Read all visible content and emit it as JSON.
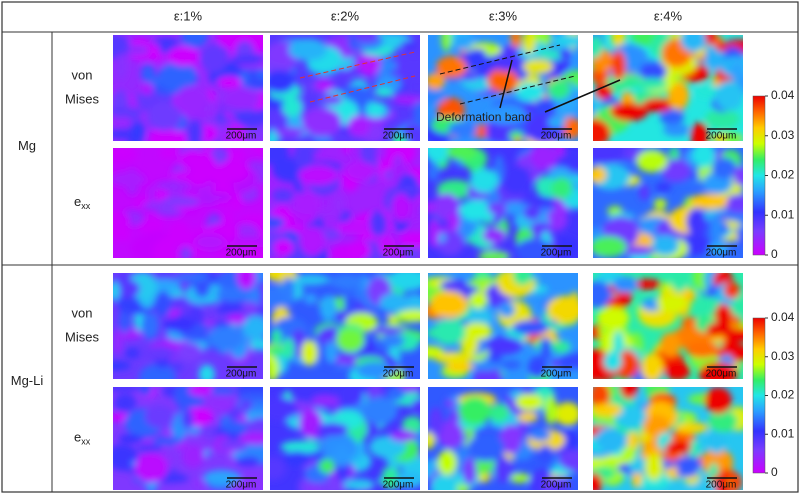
{
  "header": {
    "columns": [
      "ε:1%",
      "ε:2%",
      "ε:3%",
      "ε:4%"
    ]
  },
  "groups": [
    {
      "label": "Mg",
      "rows": [
        {
          "label": [
            "von",
            "Mises"
          ]
        },
        {
          "label": "e",
          "subscript": "xx"
        }
      ]
    },
    {
      "label": "Mg-Li",
      "rows": [
        {
          "label": [
            "von",
            "Mises"
          ]
        },
        {
          "label": "e",
          "subscript": "xx"
        }
      ]
    }
  ],
  "scale_bar": "200μm",
  "annotation": "Deformation band",
  "colorbar": {
    "ticks": [
      0,
      0.01,
      0.02,
      0.03,
      0.04
    ]
  }
}
